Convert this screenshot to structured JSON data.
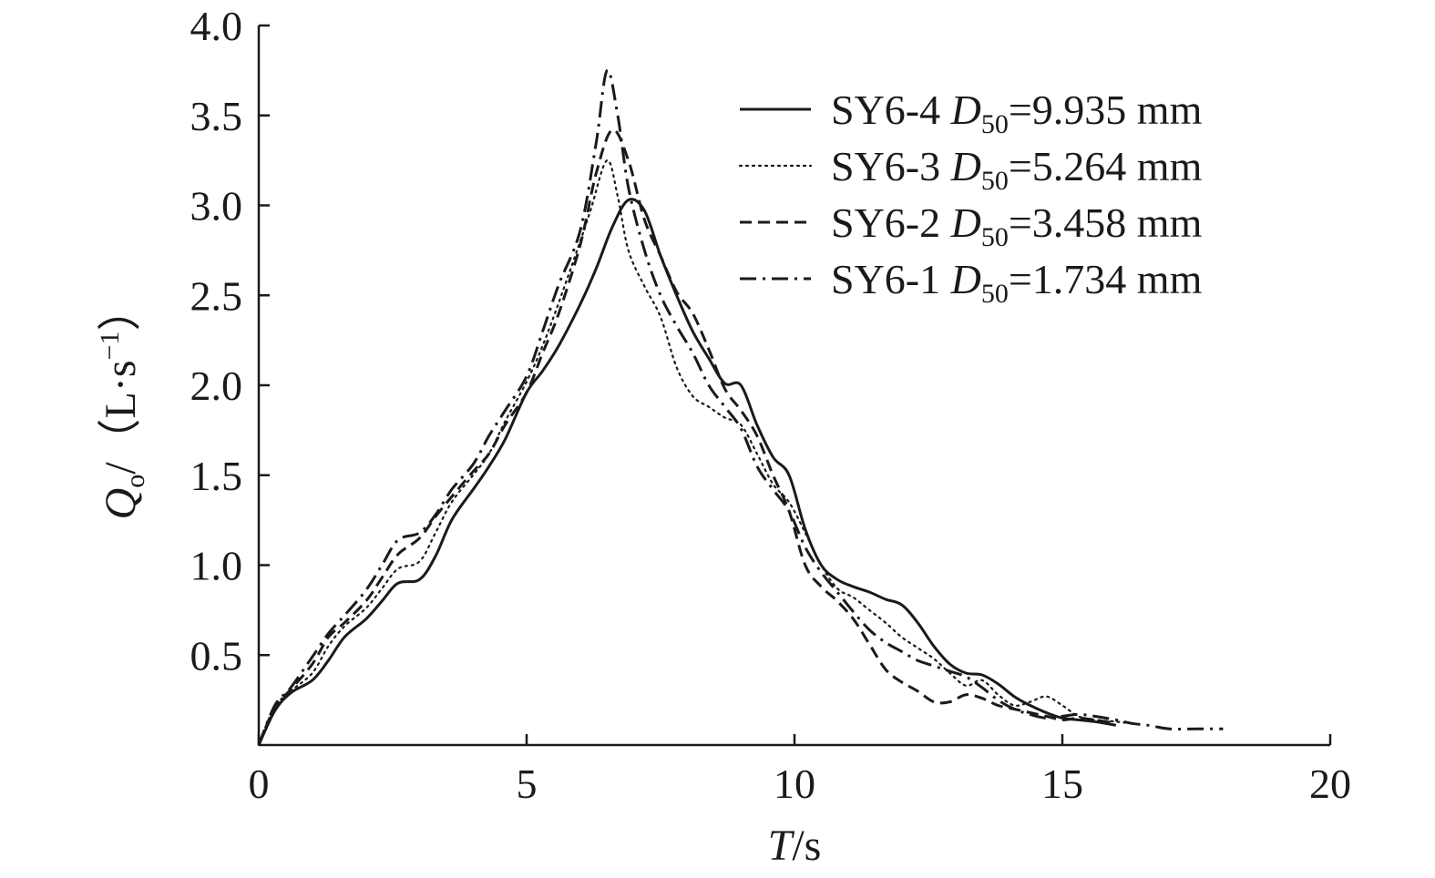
{
  "chart_data": {
    "type": "line",
    "xlabel": {
      "var": "T",
      "unit": "/s"
    },
    "ylabel": {
      "var": "Q",
      "var_sub": "o",
      "rest": "/（L·s",
      "exp": "−1",
      "close": "）"
    },
    "xlim": [
      0,
      20
    ],
    "ylim": [
      0,
      4.0
    ],
    "xticks": [
      "0",
      "5",
      "10",
      "15",
      "20"
    ],
    "yticks": [
      "0.5",
      "1.0",
      "1.5",
      "2.0",
      "2.5",
      "3.0",
      "3.5",
      "4.0"
    ],
    "legend_position": "top-right",
    "series": [
      {
        "name": "SY6-4",
        "label_var": "D",
        "label_sub": "50",
        "label_rest": "=9.935 mm",
        "style": "solid",
        "x": [
          0,
          0.3,
          0.6,
          1.0,
          1.3,
          1.6,
          2.0,
          2.3,
          2.6,
          3.0,
          3.3,
          3.6,
          4.0,
          4.3,
          4.6,
          5.0,
          5.3,
          5.6,
          6.0,
          6.3,
          6.6,
          6.9,
          7.2,
          7.5,
          7.8,
          8.1,
          8.4,
          8.7,
          9.0,
          9.3,
          9.6,
          9.9,
          10.2,
          10.5,
          10.8,
          11.1,
          11.4,
          11.7,
          12.0,
          12.3,
          12.6,
          12.9,
          13.2,
          13.5,
          13.8,
          14.1,
          14.4,
          14.7,
          15.0,
          15.3,
          15.6,
          16.0
        ],
        "y": [
          0.0,
          0.19,
          0.29,
          0.36,
          0.47,
          0.6,
          0.7,
          0.8,
          0.9,
          0.92,
          1.05,
          1.25,
          1.42,
          1.55,
          1.7,
          1.96,
          2.08,
          2.22,
          2.45,
          2.65,
          2.88,
          3.03,
          2.97,
          2.72,
          2.5,
          2.3,
          2.15,
          2.01,
          2.0,
          1.78,
          1.6,
          1.5,
          1.2,
          1.0,
          0.92,
          0.88,
          0.85,
          0.81,
          0.78,
          0.68,
          0.55,
          0.45,
          0.4,
          0.39,
          0.34,
          0.27,
          0.22,
          0.18,
          0.15,
          0.14,
          0.13,
          0.11
        ]
      },
      {
        "name": "SY6-3",
        "label_var": "D",
        "label_sub": "50",
        "label_rest": "=5.264 mm",
        "style": "dotted",
        "x": [
          0,
          0.3,
          0.6,
          1.0,
          1.3,
          1.6,
          2.0,
          2.3,
          2.6,
          3.0,
          3.3,
          3.6,
          4.0,
          4.3,
          4.6,
          5.0,
          5.3,
          5.6,
          6.0,
          6.2,
          6.5,
          6.7,
          6.9,
          7.2,
          7.5,
          7.8,
          8.1,
          8.4,
          8.7,
          9.0,
          9.3,
          9.6,
          9.9,
          10.2,
          10.5,
          10.8,
          11.1,
          11.4,
          11.7,
          12.0,
          12.3,
          12.6,
          12.9,
          13.2,
          13.5,
          13.8,
          14.1,
          14.4,
          14.7,
          15.0,
          15.3,
          15.6,
          16.0,
          16.3
        ],
        "y": [
          0.0,
          0.21,
          0.3,
          0.4,
          0.55,
          0.66,
          0.76,
          0.87,
          0.98,
          1.02,
          1.18,
          1.35,
          1.5,
          1.62,
          1.8,
          2.02,
          2.22,
          2.46,
          2.8,
          2.98,
          3.25,
          3.05,
          2.75,
          2.55,
          2.38,
          2.1,
          1.94,
          1.88,
          1.82,
          1.78,
          1.62,
          1.45,
          1.35,
          1.18,
          1.0,
          0.87,
          0.82,
          0.75,
          0.68,
          0.6,
          0.54,
          0.48,
          0.4,
          0.33,
          0.36,
          0.28,
          0.22,
          0.24,
          0.27,
          0.22,
          0.16,
          0.14,
          0.13,
          0.12
        ]
      },
      {
        "name": "SY6-2",
        "label_var": "D",
        "label_sub": "50",
        "label_rest": "=3.458 mm",
        "style": "dashed",
        "x": [
          0,
          0.3,
          0.6,
          1.0,
          1.3,
          1.6,
          2.0,
          2.3,
          2.6,
          3.0,
          3.3,
          3.6,
          4.0,
          4.3,
          4.6,
          5.0,
          5.3,
          5.6,
          6.0,
          6.3,
          6.6,
          6.9,
          7.2,
          7.5,
          7.8,
          8.1,
          8.4,
          8.7,
          9.0,
          9.3,
          9.6,
          9.9,
          10.2,
          10.5,
          10.8,
          11.1,
          11.4,
          11.7,
          12.0,
          12.3,
          12.6,
          12.9,
          13.2,
          13.5,
          13.8,
          14.1,
          14.4,
          14.7,
          15.0,
          15.3,
          15.6,
          16.0
        ],
        "y": [
          0.0,
          0.21,
          0.31,
          0.45,
          0.6,
          0.68,
          0.8,
          0.93,
          1.06,
          1.15,
          1.27,
          1.38,
          1.52,
          1.62,
          1.78,
          1.96,
          2.18,
          2.4,
          2.78,
          3.18,
          3.42,
          3.25,
          2.92,
          2.72,
          2.52,
          2.4,
          2.2,
          1.98,
          1.86,
          1.72,
          1.5,
          1.3,
          1.0,
          0.88,
          0.8,
          0.7,
          0.56,
          0.42,
          0.35,
          0.3,
          0.24,
          0.24,
          0.28,
          0.26,
          0.22,
          0.2,
          0.18,
          0.16,
          0.14,
          0.15,
          0.14,
          0.12
        ]
      },
      {
        "name": "SY6-1",
        "label_var": "D",
        "label_sub": "50",
        "label_rest": "=1.734 mm",
        "style": "dashdot",
        "x": [
          0,
          0.3,
          0.6,
          1.0,
          1.3,
          1.6,
          2.0,
          2.3,
          2.6,
          3.0,
          3.3,
          3.6,
          4.0,
          4.3,
          4.6,
          5.0,
          5.3,
          5.6,
          6.0,
          6.3,
          6.5,
          6.7,
          6.9,
          7.2,
          7.5,
          7.8,
          8.1,
          8.4,
          8.7,
          9.0,
          9.3,
          9.6,
          9.9,
          10.2,
          10.5,
          10.8,
          11.1,
          11.4,
          11.7,
          12.0,
          12.3,
          12.6,
          12.9,
          13.2,
          13.5,
          13.8,
          14.1,
          14.4,
          14.7,
          15.0,
          15.3,
          15.6,
          16.0,
          16.3,
          16.6,
          17.0,
          17.5,
          18.0
        ],
        "y": [
          0.0,
          0.22,
          0.32,
          0.49,
          0.62,
          0.72,
          0.86,
          1.0,
          1.14,
          1.18,
          1.28,
          1.42,
          1.56,
          1.72,
          1.86,
          2.05,
          2.3,
          2.56,
          2.86,
          3.35,
          3.75,
          3.5,
          3.1,
          2.75,
          2.5,
          2.33,
          2.18,
          2.0,
          1.88,
          1.76,
          1.55,
          1.42,
          1.3,
          1.1,
          0.96,
          0.85,
          0.74,
          0.64,
          0.57,
          0.52,
          0.47,
          0.44,
          0.41,
          0.38,
          0.32,
          0.25,
          0.2,
          0.17,
          0.15,
          0.16,
          0.17,
          0.16,
          0.14,
          0.12,
          0.11,
          0.09,
          0.09,
          0.09
        ]
      }
    ]
  }
}
